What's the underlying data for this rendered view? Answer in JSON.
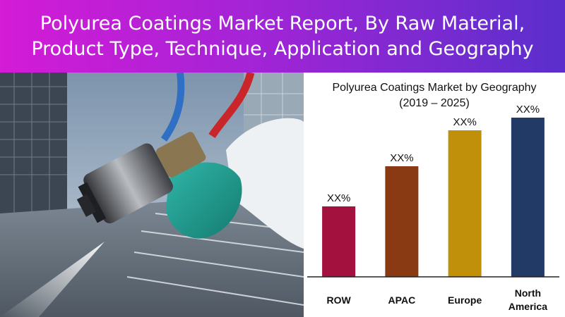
{
  "banner": {
    "title": "Polyurea Coatings Market Report, By Raw Material, Product Type, Technique, Application and Geography",
    "gradient": [
      "#d41bd6",
      "#a324d6",
      "#5a2fcc"
    ]
  },
  "photo": {
    "subject": "spray-gun-with-blue-and-red-hoses-coating-parking-deck"
  },
  "chart_data": {
    "type": "bar",
    "title_lines": [
      "Polyurea Coatings Market by Geography",
      "(2019 – 2025)"
    ],
    "categories": [
      [
        "ROW"
      ],
      [
        "APAC"
      ],
      [
        "Europe"
      ],
      [
        "North",
        "America"
      ]
    ],
    "values": [
      1,
      1.57,
      2.08,
      2.26
    ],
    "data_labels": [
      "XX%",
      "XX%",
      "XX%",
      "XX%"
    ],
    "colors": [
      "#a3123f",
      "#8a3a12",
      "#c0900b",
      "#213a66"
    ],
    "ylim": [
      0,
      2.5
    ],
    "grid": false,
    "axis_line": "bottom"
  }
}
